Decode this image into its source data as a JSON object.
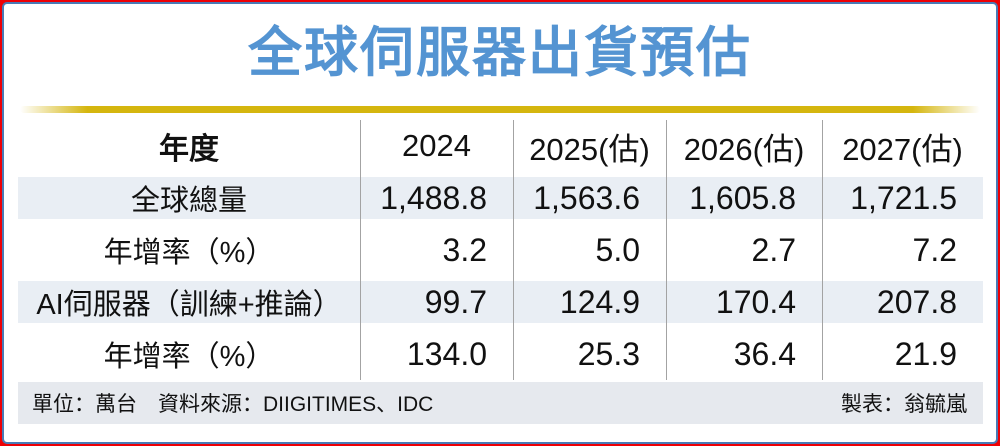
{
  "title": "全球伺服器出貨預估",
  "colors": {
    "outer_border": "#ee0005",
    "inner_border": "#4a7ab5",
    "title_blue": "#5494d2",
    "gold_rule": "#d5b60e",
    "stripe_row": "#e9eef4",
    "footer_bg": "#e6e9ee",
    "separator": "#a3a3a3",
    "text": "#111111"
  },
  "table": {
    "header": {
      "label": "年度",
      "years": [
        "2024",
        "2025(估)",
        "2026(估)",
        "2027(估)"
      ]
    },
    "rows": [
      {
        "label": "全球總量",
        "values": [
          "1,488.8",
          "1,563.6",
          "1,605.8",
          "1,721.5"
        ]
      },
      {
        "label": "年增率（%）",
        "values": [
          "3.2",
          "5.0",
          "2.7",
          "7.2"
        ]
      },
      {
        "label": "AI伺服器（訓練+推論）",
        "values": [
          "99.7",
          "124.9",
          "170.4",
          "207.8"
        ]
      },
      {
        "label": "年增率（%）",
        "values": [
          "134.0",
          "25.3",
          "36.4",
          "21.9"
        ]
      }
    ]
  },
  "footer": {
    "left": "單位：萬台　資料來源：DIIGITIMES、IDC",
    "right": "製表：翁毓嵐"
  },
  "chart_data": {
    "type": "table",
    "title": "全球伺服器出貨預估",
    "categories": [
      "2024",
      "2025(估)",
      "2026(估)",
      "2027(估)"
    ],
    "series": [
      {
        "name": "全球總量",
        "values": [
          1488.8,
          1563.6,
          1605.8,
          1721.5
        ]
      },
      {
        "name": "年增率（%）",
        "values": [
          3.2,
          5.0,
          2.7,
          7.2
        ]
      },
      {
        "name": "AI伺服器（訓練+推論）",
        "values": [
          99.7,
          124.9,
          170.4,
          207.8
        ]
      },
      {
        "name": "年增率（%）",
        "values": [
          134.0,
          25.3,
          36.4,
          21.9
        ]
      }
    ],
    "unit": "萬台",
    "source": "DIIGITIMES、IDC",
    "credit": "翁毓嵐"
  }
}
